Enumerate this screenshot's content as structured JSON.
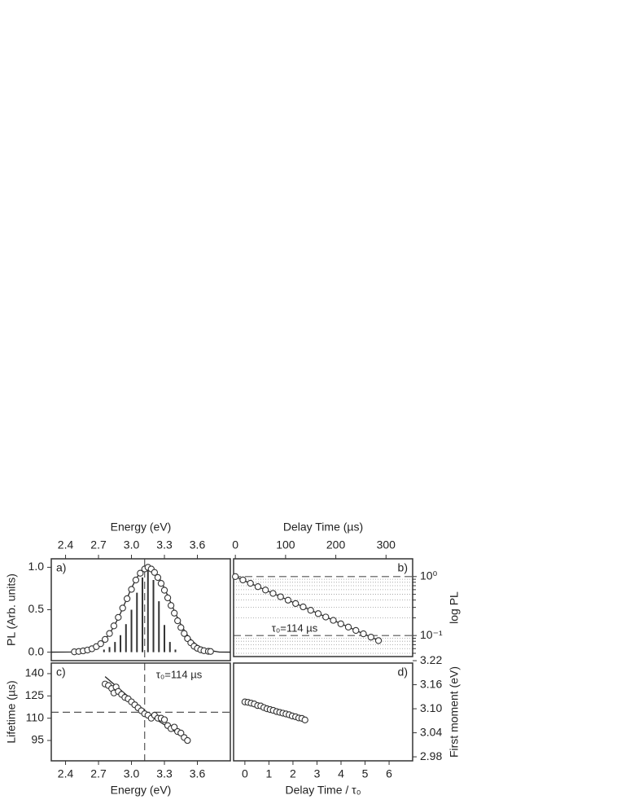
{
  "chart_data": [
    {
      "type": "scatter",
      "panel_label": "a)",
      "label_corner": "upper left",
      "x_label": "Energy (eV)",
      "y_label": "PL (Arb. units)",
      "x_axis": "top",
      "y_axis": "left",
      "xlim": [
        2.27,
        3.9
      ],
      "ylim": [
        -0.1,
        1.1
      ],
      "xticks": [
        2.4,
        2.7,
        {
          "value": 3,
          "label": "3.0"
        },
        3.3,
        3.6
      ],
      "yticks": [
        {
          "value": 0,
          "label": "0.0"
        },
        0.5,
        {
          "value": 1,
          "label": "1.0"
        }
      ],
      "vlines": [
        3.12
      ],
      "series": [
        {
          "style": "stems",
          "color": "#333333",
          "x": [
            2.75,
            2.8,
            2.85,
            2.9,
            2.95,
            3.0,
            3.05,
            3.1,
            3.15,
            3.2,
            3.25,
            3.3,
            3.35,
            3.4
          ],
          "values": [
            0.03,
            0.06,
            0.12,
            0.2,
            0.33,
            0.5,
            0.7,
            0.88,
            0.98,
            0.85,
            0.6,
            0.32,
            0.12,
            0.03
          ]
        },
        {
          "style": "line",
          "color": "#222222",
          "x": [
            2.27,
            2.45,
            2.5,
            2.55,
            2.6,
            2.65,
            2.7,
            2.75,
            2.8,
            2.85,
            2.9,
            2.95,
            3.0,
            3.05,
            3.1,
            3.15,
            3.2,
            3.25,
            3.3,
            3.35,
            3.4,
            3.45,
            3.5,
            3.55,
            3.6,
            3.65,
            3.7,
            3.8,
            3.9
          ],
          "values": [
            0,
            0.002,
            0.005,
            0.011,
            0.023,
            0.044,
            0.08,
            0.135,
            0.216,
            0.325,
            0.458,
            0.607,
            0.755,
            0.882,
            0.969,
            1.0,
            0.969,
            0.882,
            0.755,
            0.607,
            0.458,
            0.325,
            0.216,
            0.135,
            0.08,
            0.044,
            0.023,
            0.001,
            0
          ]
        },
        {
          "style": "markers",
          "color": "#333333",
          "x": [
            2.48,
            2.52,
            2.56,
            2.6,
            2.64,
            2.68,
            2.72,
            2.76,
            2.8,
            2.84,
            2.88,
            2.92,
            2.96,
            3.0,
            3.04,
            3.08,
            3.12,
            3.15,
            3.18,
            3.21,
            3.24,
            3.27,
            3.3,
            3.33,
            3.36,
            3.39,
            3.42,
            3.45,
            3.48,
            3.51,
            3.54,
            3.57,
            3.6,
            3.63,
            3.66,
            3.7,
            3.72
          ],
          "values": [
            0.004,
            0.008,
            0.015,
            0.025,
            0.04,
            0.065,
            0.1,
            0.15,
            0.22,
            0.31,
            0.41,
            0.52,
            0.63,
            0.74,
            0.85,
            0.93,
            0.98,
            1.0,
            0.98,
            0.94,
            0.88,
            0.81,
            0.73,
            0.64,
            0.55,
            0.46,
            0.37,
            0.29,
            0.22,
            0.16,
            0.11,
            0.07,
            0.045,
            0.028,
            0.017,
            0.01,
            0.008
          ]
        }
      ]
    },
    {
      "type": "scatter",
      "panel_label": "b)",
      "label_corner": "upper right",
      "x_label": "Delay Time (µs)",
      "y_label": "log PL",
      "x_axis": "top",
      "y_axis": "right",
      "ylog": true,
      "xlim": [
        -3.5,
        353
      ],
      "ylim": [
        0.044,
        2.0
      ],
      "xticks": [
        0,
        100,
        200,
        300
      ],
      "yticks": [
        {
          "value": 1,
          "label": "10⁰"
        },
        {
          "value": 0.1,
          "label": "10⁻¹"
        }
      ],
      "yminor": [
        0.05,
        0.06,
        0.07,
        0.08,
        0.09,
        0.2,
        0.3,
        0.4,
        0.5,
        0.6,
        0.7,
        0.8,
        0.9
      ],
      "hlines": [
        1,
        0.1
      ],
      "annotation": "τ₀=114 µs",
      "series": [
        {
          "style": "line",
          "color": "#222222",
          "x": [
            0,
            290
          ],
          "values": [
            1.0,
            0.079
          ]
        },
        {
          "style": "markers",
          "color": "#333333",
          "x": [
            0,
            15,
            30,
            45,
            60,
            75,
            90,
            105,
            120,
            135,
            150,
            165,
            180,
            195,
            210,
            225,
            240,
            255,
            270,
            285
          ],
          "values": [
            1.0,
            0.877,
            0.769,
            0.674,
            0.591,
            0.518,
            0.454,
            0.398,
            0.349,
            0.306,
            0.268,
            0.235,
            0.206,
            0.181,
            0.158,
            0.139,
            0.122,
            0.107,
            0.094,
            0.082
          ]
        }
      ]
    },
    {
      "type": "scatter",
      "panel_label": "c)",
      "label_corner": "upper left",
      "x_label": "Energy (eV)",
      "y_label": "Lifetime (µs)",
      "x_axis": "bottom",
      "y_axis": "left",
      "xlim": [
        2.27,
        3.9
      ],
      "ylim": [
        81.3,
        147.1
      ],
      "xticks": [
        2.4,
        2.7,
        {
          "value": 3,
          "label": "3.0"
        },
        3.3,
        3.6
      ],
      "yticks": [
        95,
        110,
        125,
        140
      ],
      "vlines": [
        3.12
      ],
      "hlines": [
        114
      ],
      "annotation": "τ₀=114 µs",
      "series": [
        {
          "style": "line",
          "color": "#222222",
          "x": [
            2.76,
            3.2
          ],
          "values": [
            138,
            110
          ]
        },
        {
          "style": "line",
          "color": "#222222",
          "x": [
            3.0,
            3.52
          ],
          "values": [
            120,
            95
          ]
        },
        {
          "style": "markers",
          "color": "#333333",
          "x": [
            2.76,
            2.79,
            2.82,
            2.84,
            2.86,
            2.88,
            2.91,
            2.94,
            2.97,
            3.0,
            3.03,
            3.06,
            3.09,
            3.12,
            3.15,
            3.18,
            3.21,
            3.24,
            3.27,
            3.3,
            3.33,
            3.36,
            3.39,
            3.42,
            3.45,
            3.48,
            3.51
          ],
          "values": [
            133,
            132,
            130,
            127,
            131,
            128,
            126,
            124,
            123,
            121,
            119,
            117,
            115,
            113,
            112,
            110,
            112,
            110,
            110,
            109,
            105,
            103,
            104,
            101,
            100,
            97,
            95
          ]
        }
      ]
    },
    {
      "type": "scatter",
      "panel_label": "d)",
      "label_corner": "upper right",
      "x_label": "Delay Time / τ₀",
      "y_label": "First moment (eV)",
      "x_axis": "bottom",
      "y_axis": "right",
      "xlim": [
        -0.47,
        6.98
      ],
      "ylim": [
        2.97,
        3.214
      ],
      "xticks": [
        0,
        1,
        2,
        3,
        4,
        5,
        6
      ],
      "yticks": [
        2.98,
        3.04,
        {
          "value": 3.1,
          "label": "3.10"
        },
        3.16,
        3.22
      ],
      "series": [
        {
          "style": "line",
          "color": "#222222",
          "x": [
            0,
            2.5
          ],
          "values": [
            3.117,
            3.072
          ]
        },
        {
          "style": "markers",
          "color": "#333333",
          "x": [
            0,
            0.13,
            0.26,
            0.39,
            0.53,
            0.66,
            0.79,
            0.92,
            1.05,
            1.18,
            1.32,
            1.45,
            1.58,
            1.71,
            1.84,
            1.97,
            2.11,
            2.24,
            2.37,
            2.5
          ],
          "values": [
            3.117,
            3.116,
            3.114,
            3.112,
            3.108,
            3.107,
            3.103,
            3.1,
            3.098,
            3.096,
            3.093,
            3.091,
            3.089,
            3.087,
            3.085,
            3.082,
            3.08,
            3.077,
            3.076,
            3.072
          ]
        }
      ]
    }
  ]
}
